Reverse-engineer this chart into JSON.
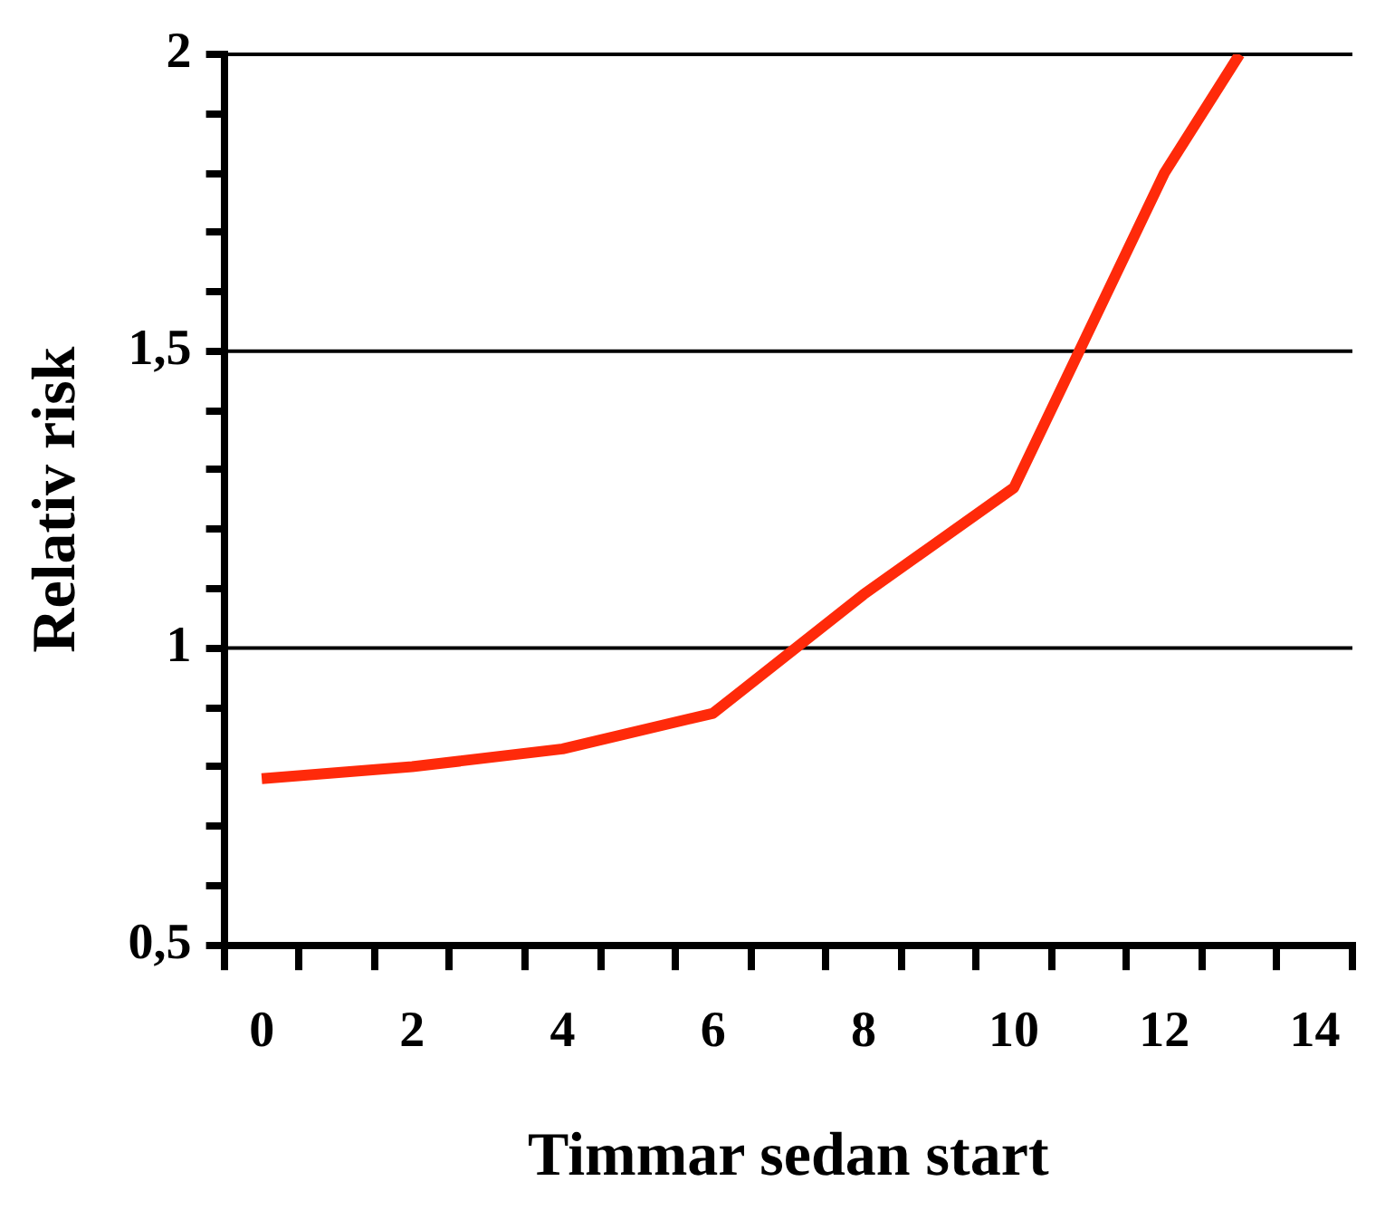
{
  "chart_data": {
    "type": "line",
    "xlabel": "Timmar sedan start",
    "ylabel": "Relativ risk",
    "x": [
      0,
      2,
      4,
      6,
      8,
      10,
      12,
      13
    ],
    "series": [
      {
        "color": "#ff2a0a",
        "values": [
          0.78,
          0.8,
          0.83,
          0.89,
          1.09,
          1.27,
          1.8,
          2.0
        ]
      }
    ],
    "xlim": [
      -0.5,
      14.5
    ],
    "xticks": [
      {
        "value": -0.5,
        "label": null
      },
      0,
      {
        "value": 0.5,
        "label": null
      },
      {
        "value": 1.5,
        "label": null
      },
      2,
      {
        "value": 2.5,
        "label": null
      },
      {
        "value": 3.5,
        "label": null
      },
      4,
      {
        "value": 4.5,
        "label": null
      },
      {
        "value": 5.5,
        "label": null
      },
      6,
      {
        "value": 6.5,
        "label": null
      },
      {
        "value": 7.5,
        "label": null
      },
      8,
      {
        "value": 8.5,
        "label": null
      },
      {
        "value": 9.5,
        "label": null
      },
      10,
      {
        "value": 10.5,
        "label": null
      },
      {
        "value": 11.5,
        "label": null
      },
      12,
      {
        "value": 12.5,
        "label": null
      },
      {
        "value": 13.5,
        "label": null
      },
      14,
      {
        "value": 14.5,
        "label": null
      }
    ],
    "ylim": [
      0.5,
      2
    ],
    "yticks": [
      {
        "value": 0.5,
        "label": "0,5"
      },
      {
        "value": 0.6,
        "label": null
      },
      {
        "value": 0.7,
        "label": null
      },
      {
        "value": 0.8,
        "label": null
      },
      {
        "value": 0.9,
        "label": null
      },
      {
        "value": 1,
        "label": "1"
      },
      {
        "value": 1.1,
        "label": null
      },
      {
        "value": 1.2,
        "label": null
      },
      {
        "value": 1.3,
        "label": null
      },
      {
        "value": 1.4,
        "label": null
      },
      {
        "value": 1.5,
        "label": "1,5"
      },
      {
        "value": 1.6,
        "label": null
      },
      {
        "value": 1.7,
        "label": null
      },
      {
        "value": 1.8,
        "label": null
      },
      {
        "value": 1.9,
        "label": null
      },
      {
        "value": 2,
        "label": "2"
      }
    ],
    "grid": "y",
    "legend": false,
    "marker": "none",
    "line_style": "solid"
  }
}
